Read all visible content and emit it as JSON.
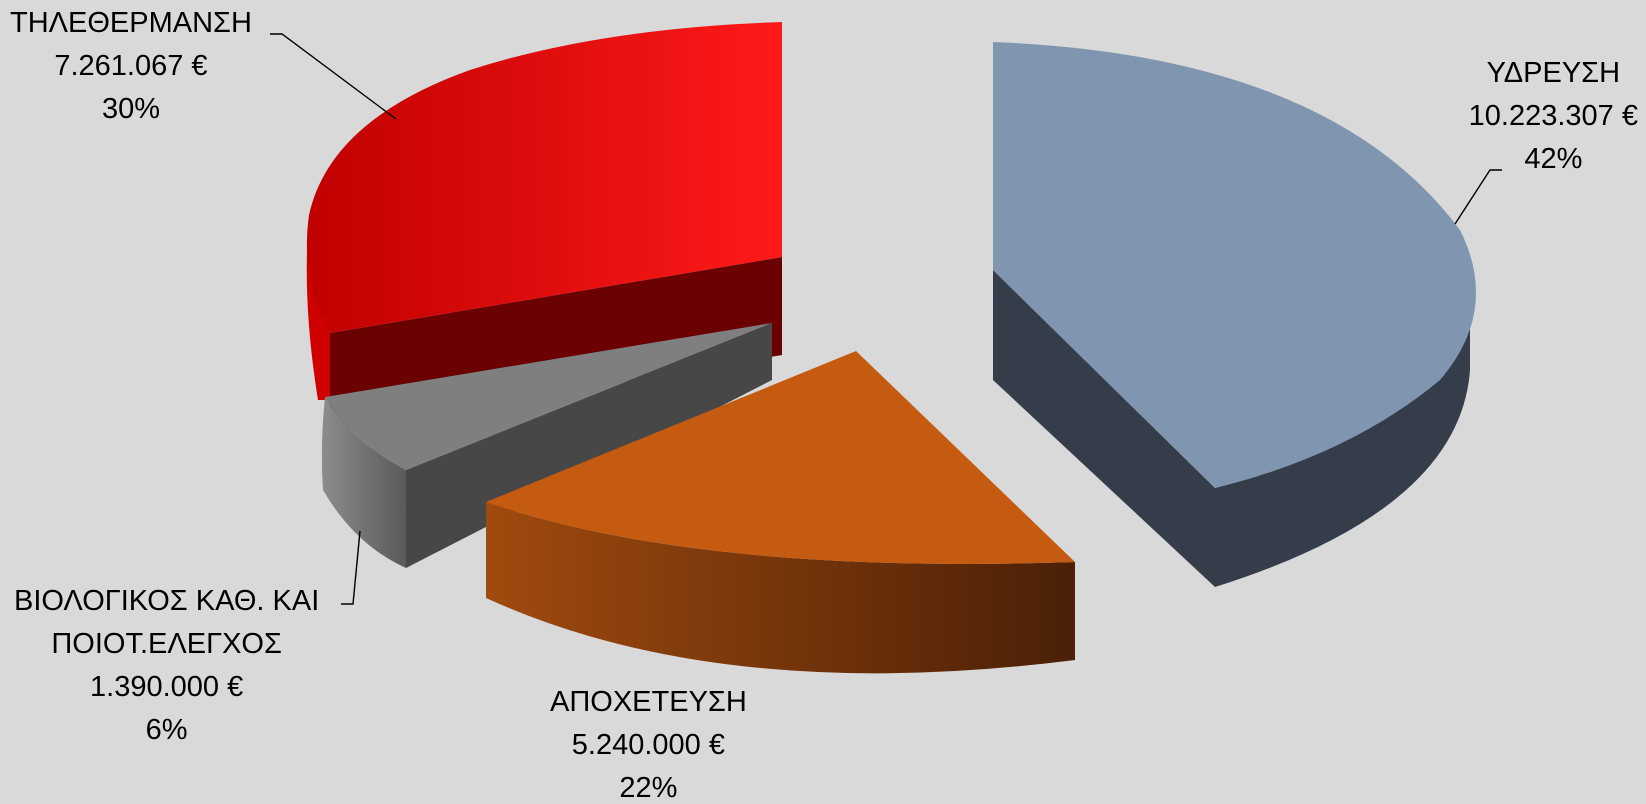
{
  "chart_data": {
    "type": "pie",
    "variant": "3d-exploded",
    "title": "",
    "slices": [
      {
        "name": "ΥΔΡΕΥΣΗ",
        "value": 10223307,
        "value_label": "10.223.307 €",
        "percent_label": "42%",
        "color": "#8096b0"
      },
      {
        "name": "ΤΗΛΕΘΕΡΜΑΝΣΗ",
        "value": 7261067,
        "value_label": "7.261.067 €",
        "percent_label": "30%",
        "color": "#ff0000"
      },
      {
        "name": "ΒΙΟΛΟΓΙΚΟΣ ΚΑΘ. ΚΑΙ ΠΟΙΟΤ.ΕΛΕΓΧΟΣ",
        "name_line1": "ΒΙΟΛΟΓΙΚΟΣ ΚΑΘ. ΚΑΙ",
        "name_line2": "ΠΟΙΟΤ.ΕΛΕΓΧΟΣ",
        "value": 1390000,
        "value_label": "1.390.000 €",
        "percent_label": "6%",
        "color": "#7f7f7f"
      },
      {
        "name": "ΑΠΟΧΕΤΕΥΣΗ",
        "value": 5240000,
        "value_label": "5.240.000 €",
        "percent_label": "22%",
        "color": "#c55a11"
      }
    ]
  }
}
